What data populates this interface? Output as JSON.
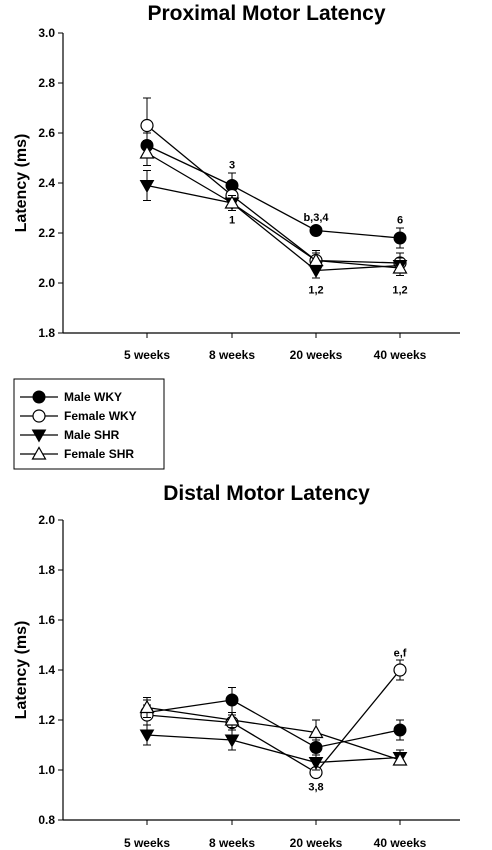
{
  "chart_data": [
    {
      "type": "line",
      "title": "Proximal Motor Latency",
      "xlabel": "",
      "ylabel": "Latency (ms)",
      "categories": [
        "5 weeks",
        "8 weeks",
        "20 weeks",
        "40 weeks"
      ],
      "ylim": [
        1.8,
        3.0
      ],
      "yticks": [
        "1.8",
        "2.0",
        "2.2",
        "2.4",
        "2.6",
        "2.8",
        "3.0"
      ],
      "grid": false,
      "series": [
        {
          "name": "Male WKY",
          "marker": "circle-filled",
          "values": [
            2.55,
            2.39,
            2.21,
            2.18
          ],
          "errors": [
            0.05,
            0.05,
            0.015,
            0.04
          ]
        },
        {
          "name": "Female WKY",
          "marker": "circle-open",
          "values": [
            2.63,
            2.35,
            2.09,
            2.08
          ],
          "errors": [
            0.11,
            0.04,
            0.04,
            0.04
          ]
        },
        {
          "name": "Male SHR",
          "marker": "triangle-down-filled",
          "values": [
            2.39,
            2.32,
            2.05,
            2.07
          ],
          "errors": [
            0.06,
            0.03,
            0.03,
            0.03
          ]
        },
        {
          "name": "Female SHR",
          "marker": "triangle-up-open",
          "values": [
            2.52,
            2.32,
            2.09,
            2.06
          ],
          "errors": [
            0.05,
            0.03,
            0.03,
            0.03
          ]
        }
      ],
      "annotations": [
        {
          "text": "3",
          "category": "8 weeks",
          "y": 2.475
        },
        {
          "text": "1",
          "category": "8 weeks",
          "y": 2.255
        },
        {
          "text": "b,3,4",
          "category": "20 weeks",
          "y": 2.265
        },
        {
          "text": "1,2",
          "category": "20 weeks",
          "y": 1.975
        },
        {
          "text": "6",
          "category": "40 weeks",
          "y": 2.255
        },
        {
          "text": "1,2",
          "category": "40 weeks",
          "y": 1.975
        }
      ]
    },
    {
      "type": "line",
      "title": "Distal Motor Latency",
      "xlabel": "",
      "ylabel": "Latency (ms)",
      "categories": [
        "5 weeks",
        "8 weeks",
        "20 weeks",
        "40 weeks"
      ],
      "ylim": [
        0.8,
        2.0
      ],
      "yticks": [
        "0.8",
        "1.0",
        "1.2",
        "1.4",
        "1.6",
        "1.8",
        "2.0"
      ],
      "grid": false,
      "series": [
        {
          "name": "Male WKY",
          "marker": "circle-filled",
          "values": [
            1.23,
            1.28,
            1.09,
            1.16
          ],
          "errors": [
            0.05,
            0.05,
            0.03,
            0.04
          ]
        },
        {
          "name": "Female WKY",
          "marker": "circle-open",
          "values": [
            1.22,
            1.19,
            0.99,
            1.4
          ],
          "errors": [
            0.04,
            0.03,
            0.02,
            0.04
          ]
        },
        {
          "name": "Male SHR",
          "marker": "triangle-down-filled",
          "values": [
            1.14,
            1.12,
            1.03,
            1.05
          ],
          "errors": [
            0.04,
            0.04,
            0.03,
            0.03
          ]
        },
        {
          "name": "Female SHR",
          "marker": "triangle-up-open",
          "values": [
            1.25,
            1.2,
            1.15,
            1.04
          ],
          "errors": [
            0.04,
            0.03,
            0.05,
            0.02
          ]
        }
      ],
      "annotations": [
        {
          "text": "e,f",
          "category": "40 weeks",
          "y": 1.47
        },
        {
          "text": "3,8",
          "category": "20 weeks",
          "y": 0.935
        }
      ]
    }
  ],
  "legend": {
    "placement": "left, between panels",
    "items": [
      {
        "label": "Male WKY",
        "marker": "circle-filled"
      },
      {
        "label": "Female WKY",
        "marker": "circle-open"
      },
      {
        "label": "Male SHR",
        "marker": "triangle-down-filled"
      },
      {
        "label": "Female SHR",
        "marker": "triangle-up-open"
      }
    ]
  },
  "colors": {
    "ink": "#000000",
    "background": "#ffffff",
    "open_fill": "#ffffff"
  }
}
